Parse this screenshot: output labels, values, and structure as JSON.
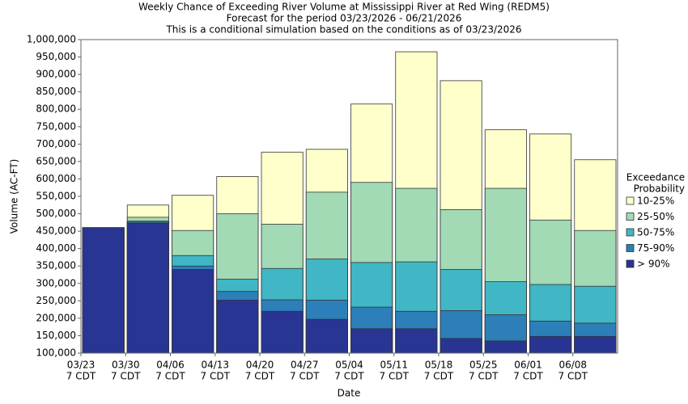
{
  "chart_data": {
    "type": "bar",
    "title": [
      "Weekly Chance of Exceeding River Volume at Mississippi River at Red Wing (REDM5)",
      "Forecast for the period 03/23/2026 - 06/21/2026",
      "This is a conditional simulation based on the conditions as of 03/23/2026"
    ],
    "x_label": "Date",
    "y_label": "Volume (AC-FT)",
    "categories": [
      "03/23",
      "03/30",
      "04/06",
      "04/13",
      "04/20",
      "04/27",
      "05/04",
      "05/11",
      "05/18",
      "05/25",
      "06/01",
      "06/08"
    ],
    "category_suffix": "7 CDT",
    "legend_title": [
      "Exceedance",
      "Probability"
    ],
    "series": [
      {
        "name": "> 90%",
        "color": "#283593",
        "values": [
          460000,
          473000,
          340000,
          252000,
          220000,
          197000,
          170000,
          170000,
          142000,
          135000,
          148000,
          148000
        ]
      },
      {
        "name": "75-90%",
        "color": "#2c7fb8",
        "values": [
          460000,
          476000,
          350000,
          277000,
          253000,
          252000,
          232000,
          220000,
          222000,
          210000,
          192000,
          186000
        ]
      },
      {
        "name": "50-75%",
        "color": "#41b6c4",
        "values": [
          460000,
          479000,
          380000,
          312000,
          343000,
          370000,
          360000,
          362000,
          340000,
          305000,
          297000,
          292000
        ]
      },
      {
        "name": "25-50%",
        "color": "#a1dab4",
        "values": [
          460000,
          490000,
          452000,
          500000,
          470000,
          562000,
          590000,
          573000,
          512000,
          573000,
          482000,
          452000
        ]
      },
      {
        "name": "10-25%",
        "color": "#ffffcc",
        "values": [
          460000,
          525000,
          553000,
          607000,
          677000,
          685000,
          815000,
          965000,
          882000,
          741000,
          729000,
          655000
        ]
      }
    ],
    "ylim": [
      100000,
      1000000
    ],
    "yticks": [
      {
        "value": 100000,
        "label": "100,000"
      },
      {
        "value": 150000,
        "label": "150,000"
      },
      {
        "value": 200000,
        "label": "200,000"
      },
      {
        "value": 250000,
        "label": "250,000"
      },
      {
        "value": 300000,
        "label": "300,000"
      },
      {
        "value": 350000,
        "label": "350,000"
      },
      {
        "value": 400000,
        "label": "400,000"
      },
      {
        "value": 450000,
        "label": "450,000"
      },
      {
        "value": 500000,
        "label": "500,000"
      },
      {
        "value": 550000,
        "label": "550,000"
      },
      {
        "value": 600000,
        "label": "600,000"
      },
      {
        "value": 650000,
        "label": "650,000"
      },
      {
        "value": 700000,
        "label": "700,000"
      },
      {
        "value": 750000,
        "label": "750,000"
      },
      {
        "value": 800000,
        "label": "800,000"
      },
      {
        "value": 850000,
        "label": "850,000"
      },
      {
        "value": 900000,
        "label": "900,000"
      },
      {
        "value": 950000,
        "label": "950,000"
      },
      {
        "value": 1000000,
        "label": "1,000,000"
      }
    ]
  }
}
